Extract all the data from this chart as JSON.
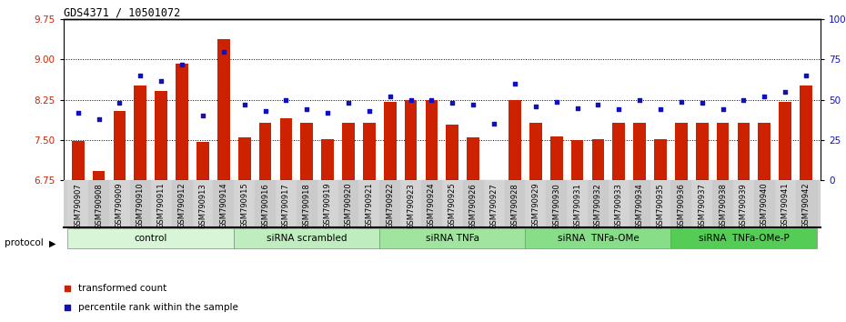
{
  "title": "GDS4371 / 10501072",
  "samples": [
    "GSM790907",
    "GSM790908",
    "GSM790909",
    "GSM790910",
    "GSM790911",
    "GSM790912",
    "GSM790913",
    "GSM790914",
    "GSM790915",
    "GSM790916",
    "GSM790917",
    "GSM790918",
    "GSM790919",
    "GSM790920",
    "GSM790921",
    "GSM790922",
    "GSM790923",
    "GSM790924",
    "GSM790925",
    "GSM790926",
    "GSM790927",
    "GSM790928",
    "GSM790929",
    "GSM790930",
    "GSM790931",
    "GSM790932",
    "GSM790933",
    "GSM790934",
    "GSM790935",
    "GSM790936",
    "GSM790937",
    "GSM790938",
    "GSM790939",
    "GSM790940",
    "GSM790941",
    "GSM790942"
  ],
  "bar_values": [
    7.48,
    6.92,
    8.05,
    8.52,
    8.42,
    8.93,
    7.47,
    9.38,
    7.55,
    7.82,
    7.91,
    7.82,
    7.52,
    7.83,
    7.83,
    8.22,
    8.24,
    8.24,
    7.78,
    7.55,
    6.71,
    8.24,
    7.83,
    7.57,
    7.5,
    7.52,
    7.83,
    7.83,
    7.52,
    7.83,
    7.83,
    7.83,
    7.83,
    7.83,
    8.22,
    8.52
  ],
  "dot_values": [
    42,
    38,
    48,
    65,
    62,
    72,
    40,
    80,
    47,
    43,
    50,
    44,
    42,
    48,
    43,
    52,
    50,
    50,
    48,
    47,
    35,
    60,
    46,
    49,
    45,
    47,
    44,
    50,
    44,
    49,
    48,
    44,
    50,
    52,
    55,
    65
  ],
  "groups": [
    {
      "label": "control",
      "start": 0,
      "end": 8,
      "color": "#d8f5d8"
    },
    {
      "label": "siRNA scrambled",
      "start": 8,
      "end": 15,
      "color": "#c0edc0"
    },
    {
      "label": "siRNA TNFa",
      "start": 15,
      "end": 22,
      "color": "#a0e4a0"
    },
    {
      "label": "siRNA  TNFa-OMe",
      "start": 22,
      "end": 29,
      "color": "#88de88"
    },
    {
      "label": "siRNA  TNFa-OMe-P",
      "start": 29,
      "end": 36,
      "color": "#55cc55"
    }
  ],
  "ylim_left": [
    6.75,
    9.75
  ],
  "ylim_right": [
    0,
    100
  ],
  "yticks_left": [
    6.75,
    7.5,
    8.25,
    9.0,
    9.75
  ],
  "yticks_right": [
    0,
    25,
    50,
    75,
    100
  ],
  "ytick_labels_right": [
    "0",
    "25",
    "50",
    "75",
    "100%"
  ],
  "bar_color": "#cc2200",
  "dot_color": "#1111bb",
  "bar_bottom": 6.75,
  "xtick_bg_color": "#d0d0d0"
}
